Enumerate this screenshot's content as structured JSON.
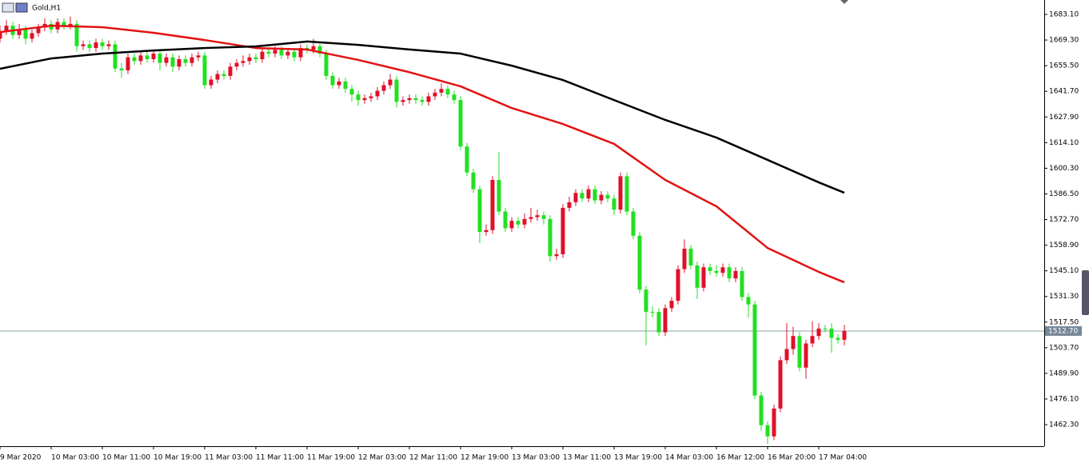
{
  "chart_data": {
    "type": "candlestick",
    "title": "Gold,H1",
    "up_color": "#e0102a",
    "down_color": "#22e022",
    "xlim": [
      0,
      163.25
    ],
    "xticks": [
      {
        "value": 0,
        "label": "9 Mar 2020"
      },
      {
        "value": 8,
        "label": "10 Mar 03:00"
      },
      {
        "value": 16,
        "label": "10 Mar 11:00"
      },
      {
        "value": 24,
        "label": "10 Mar 19:00"
      },
      {
        "value": 32,
        "label": "11 Mar 03:00"
      },
      {
        "value": 40,
        "label": "11 Mar 11:00"
      },
      {
        "value": 48,
        "label": "11 Mar 19:00"
      },
      {
        "value": 56,
        "label": "12 Mar 03:00"
      },
      {
        "value": 64,
        "label": "12 Mar 11:00"
      },
      {
        "value": 72,
        "label": "12 Mar 19:00"
      },
      {
        "value": 80,
        "label": "13 Mar 03:00"
      },
      {
        "value": 88,
        "label": "13 Mar 11:00"
      },
      {
        "value": 96,
        "label": "13 Mar 19:00"
      },
      {
        "value": 104,
        "label": "14 Mar 03:00"
      },
      {
        "value": 112,
        "label": "16 Mar 12:00"
      },
      {
        "value": 120,
        "label": "16 Mar 20:00"
      },
      {
        "value": 128,
        "label": "17 Mar 04:00"
      }
    ],
    "ylim": [
      1450.7,
      1690.85
    ],
    "yticks": [
      {
        "value": 1683.1,
        "label": "1683.10"
      },
      {
        "value": 1669.3,
        "label": "1669.30"
      },
      {
        "value": 1655.5,
        "label": "1655.50"
      },
      {
        "value": 1641.7,
        "label": "1641.70"
      },
      {
        "value": 1627.9,
        "label": "1627.90"
      },
      {
        "value": 1614.1,
        "label": "1614.10"
      },
      {
        "value": 1600.3,
        "label": "1600.30"
      },
      {
        "value": 1586.5,
        "label": "1586.50"
      },
      {
        "value": 1572.7,
        "label": "1572.70"
      },
      {
        "value": 1558.9,
        "label": "1558.90"
      },
      {
        "value": 1545.1,
        "label": "1545.10"
      },
      {
        "value": 1531.3,
        "label": "1531.30"
      },
      {
        "value": 1517.5,
        "label": "1517.50"
      },
      {
        "value": 1503.7,
        "label": "1503.70"
      },
      {
        "value": 1489.9,
        "label": "1489.90"
      },
      {
        "value": 1476.1,
        "label": "1476.10"
      },
      {
        "value": 1462.3,
        "label": "1462.30"
      }
    ],
    "current_price": {
      "value": 1512.7,
      "label": "1512.70"
    },
    "open": [
      1670,
      1674,
      1677,
      1672,
      1675,
      1670,
      1673,
      1676,
      1678,
      1675,
      1679,
      1677,
      1678,
      1666,
      1667,
      1665,
      1668,
      1666,
      1667,
      1654,
      1653,
      1660,
      1658,
      1661,
      1659,
      1662,
      1657,
      1660,
      1655,
      1659,
      1657,
      1660,
      1661,
      1645,
      1648,
      1651,
      1650,
      1655,
      1657,
      1658,
      1660,
      1659,
      1663,
      1662,
      1664,
      1661,
      1663,
      1660,
      1665,
      1664,
      1666,
      1662,
      1650,
      1645,
      1647,
      1643,
      1640,
      1637,
      1638,
      1639,
      1642,
      1645,
      1648,
      1636,
      1637,
      1638,
      1637,
      1636,
      1639,
      1641,
      1643,
      1640,
      1637,
      1612,
      1598,
      1589,
      1566,
      1567,
      1594,
      1577,
      1568,
      1572,
      1570,
      1573,
      1574,
      1575,
      1573,
      1553,
      1554,
      1579,
      1582,
      1587,
      1584,
      1589,
      1583,
      1586,
      1584,
      1578,
      1596,
      1577,
      1564,
      1535,
      1523,
      1523,
      1512,
      1525,
      1529,
      1546,
      1557,
      1548,
      1536,
      1547,
      1545,
      1544,
      1547,
      1541,
      1545,
      1531,
      1527,
      1478,
      1462,
      1456,
      1471,
      1497,
      1503,
      1510,
      1493,
      1506,
      1510,
      1514,
      1514,
      1509,
      1508
    ],
    "high": [
      1677,
      1680,
      1679,
      1678,
      1677,
      1675,
      1678,
      1681,
      1680,
      1681,
      1681,
      1682,
      1680,
      1669,
      1669,
      1670,
      1670,
      1669,
      1669,
      1657,
      1662,
      1662,
      1663,
      1663,
      1664,
      1664,
      1662,
      1662,
      1661,
      1661,
      1662,
      1663,
      1663,
      1650,
      1653,
      1653,
      1657,
      1659,
      1661,
      1662,
      1662,
      1665,
      1665,
      1666,
      1666,
      1665,
      1665,
      1667,
      1667,
      1670,
      1668,
      1664,
      1652,
      1649,
      1649,
      1645,
      1642,
      1640,
      1641,
      1644,
      1647,
      1651,
      1650,
      1639,
      1640,
      1640,
      1639,
      1641,
      1643,
      1646,
      1645,
      1642,
      1639,
      1614,
      1600,
      1591,
      1570,
      1596,
      1609,
      1579,
      1574,
      1574,
      1576,
      1579,
      1578,
      1577,
      1575,
      1557,
      1581,
      1585,
      1589,
      1589,
      1591,
      1591,
      1588,
      1588,
      1586,
      1598,
      1598,
      1579,
      1566,
      1537,
      1526,
      1525,
      1527,
      1531,
      1548,
      1562,
      1559,
      1550,
      1549,
      1549,
      1548,
      1549,
      1549,
      1547,
      1547,
      1533,
      1529,
      1480,
      1464,
      1473,
      1499,
      1517,
      1515,
      1512,
      1508,
      1518,
      1517,
      1516,
      1517,
      1511,
      1516
    ],
    "low": [
      1668,
      1672,
      1670,
      1670,
      1667,
      1668,
      1671,
      1674,
      1673,
      1673,
      1675,
      1675,
      1663,
      1664,
      1663,
      1663,
      1664,
      1664,
      1652,
      1649,
      1651,
      1656,
      1656,
      1657,
      1657,
      1653,
      1655,
      1652,
      1653,
      1655,
      1655,
      1658,
      1643,
      1643,
      1646,
      1648,
      1648,
      1653,
      1655,
      1656,
      1657,
      1657,
      1660,
      1660,
      1659,
      1659,
      1658,
      1658,
      1662,
      1662,
      1660,
      1648,
      1643,
      1643,
      1641,
      1636,
      1634,
      1635,
      1636,
      1637,
      1640,
      1643,
      1633,
      1634,
      1635,
      1635,
      1634,
      1634,
      1637,
      1639,
      1638,
      1635,
      1610,
      1596,
      1587,
      1560,
      1564,
      1565,
      1575,
      1566,
      1566,
      1568,
      1568,
      1571,
      1572,
      1570,
      1550,
      1551,
      1552,
      1577,
      1580,
      1582,
      1582,
      1581,
      1581,
      1582,
      1575,
      1576,
      1575,
      1562,
      1533,
      1505,
      1520,
      1510,
      1510,
      1523,
      1527,
      1544,
      1546,
      1530,
      1534,
      1543,
      1542,
      1542,
      1539,
      1539,
      1529,
      1520,
      1476,
      1459,
      1452,
      1454,
      1469,
      1495,
      1500,
      1491,
      1487,
      1504,
      1508,
      1512,
      1501,
      1506,
      1505
    ],
    "close": [
      1674,
      1677,
      1672,
      1675,
      1670,
      1673,
      1676,
      1678,
      1675,
      1679,
      1677,
      1678,
      1666,
      1667,
      1665,
      1668,
      1666,
      1667,
      1654,
      1653,
      1660,
      1658,
      1661,
      1659,
      1662,
      1657,
      1660,
      1655,
      1659,
      1657,
      1660,
      1661,
      1645,
      1648,
      1651,
      1650,
      1655,
      1657,
      1658,
      1660,
      1659,
      1663,
      1662,
      1664,
      1661,
      1663,
      1660,
      1665,
      1664,
      1666,
      1662,
      1650,
      1645,
      1647,
      1643,
      1640,
      1637,
      1638,
      1639,
      1642,
      1645,
      1648,
      1636,
      1637,
      1638,
      1637,
      1636,
      1639,
      1641,
      1643,
      1640,
      1637,
      1612,
      1598,
      1589,
      1566,
      1567,
      1594,
      1577,
      1568,
      1572,
      1570,
      1573,
      1574,
      1575,
      1573,
      1553,
      1554,
      1579,
      1582,
      1587,
      1584,
      1589,
      1583,
      1586,
      1584,
      1578,
      1596,
      1577,
      1564,
      1535,
      1523,
      1523,
      1512,
      1525,
      1529,
      1546,
      1557,
      1548,
      1536,
      1547,
      1545,
      1544,
      1547,
      1541,
      1545,
      1531,
      1527,
      1478,
      1462,
      1456,
      1471,
      1497,
      1503,
      1510,
      1493,
      1506,
      1510,
      1514,
      1514,
      1509,
      1508,
      1512.7
    ],
    "lines": [
      {
        "color": "#e31212",
        "x": [
          0,
          8,
          16,
          24,
          32,
          40,
          48,
          56,
          64,
          72,
          80,
          88,
          96,
          104,
          112,
          120,
          128,
          132
        ],
        "values": [
          1673.6,
          1677,
          1676.2,
          1673.2,
          1669.3,
          1665,
          1664.2,
          1658.6,
          1652,
          1644.4,
          1632.7,
          1624.1,
          1613.4,
          1594,
          1579.8,
          1557.4,
          1544.5,
          1538.9
        ]
      },
      {
        "color": "#000000",
        "x": [
          0,
          8,
          16,
          24,
          32,
          40,
          48,
          56,
          64,
          72,
          80,
          88,
          96,
          104,
          112,
          120,
          128,
          132
        ],
        "values": [
          1653.8,
          1659.4,
          1662,
          1663.7,
          1665,
          1665.9,
          1668.5,
          1666.7,
          1664.2,
          1662,
          1655.5,
          1647.8,
          1637,
          1626.3,
          1616.8,
          1604.8,
          1592.7,
          1587.1
        ]
      }
    ]
  }
}
